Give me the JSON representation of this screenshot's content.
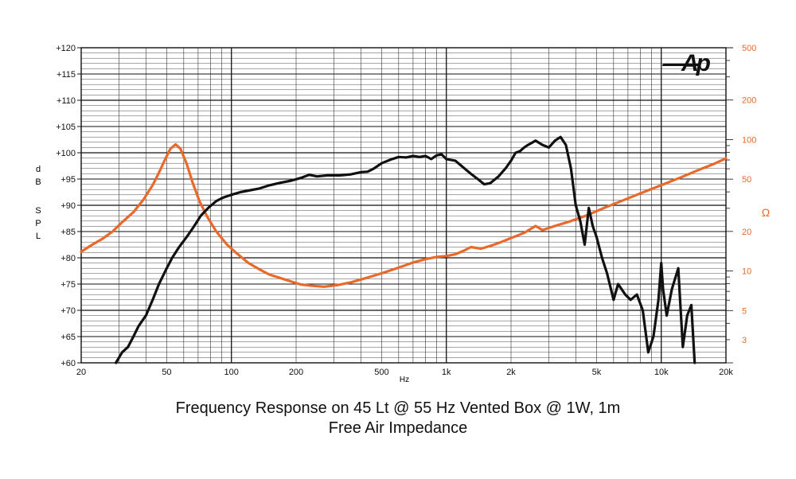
{
  "logo_text": "Ap",
  "captions": {
    "line1": "Frequency Response on 45 Lt @ 55 Hz Vented Box @ 1W, 1m",
    "line2": "Free Air Impedance"
  },
  "chart_data": {
    "type": "line",
    "title": "Frequency Response on 45 Lt @ 55 Hz Vented Box @ 1W, 1m",
    "subtitle": "Free Air Impedance",
    "xlabel": "Hz",
    "ylabel": "d B S P L",
    "y2label": "Ω",
    "xscale": "log",
    "xlim": [
      20,
      20000
    ],
    "ylim": [
      60,
      120
    ],
    "y2scale": "log",
    "y2lim": [
      2,
      500
    ],
    "grid": true,
    "x_ticks": [
      {
        "v": 20,
        "label": "20"
      },
      {
        "v": 50,
        "label": "50"
      },
      {
        "v": 100,
        "label": "100"
      },
      {
        "v": 200,
        "label": "200"
      },
      {
        "v": 500,
        "label": "500"
      },
      {
        "v": 1000,
        "label": "1k"
      },
      {
        "v": 2000,
        "label": "2k"
      },
      {
        "v": 5000,
        "label": "5k"
      },
      {
        "v": 10000,
        "label": "10k"
      },
      {
        "v": 20000,
        "label": "20k"
      }
    ],
    "y_ticks": [
      {
        "v": 120,
        "label": "+120"
      },
      {
        "v": 115,
        "label": "+115"
      },
      {
        "v": 110,
        "label": "+110"
      },
      {
        "v": 105,
        "label": "+105"
      },
      {
        "v": 100,
        "label": "+100"
      },
      {
        "v": 95,
        "label": "+95"
      },
      {
        "v": 90,
        "label": "+90"
      },
      {
        "v": 85,
        "label": "+85"
      },
      {
        "v": 80,
        "label": "+80"
      },
      {
        "v": 75,
        "label": "+75"
      },
      {
        "v": 70,
        "label": "+70"
      },
      {
        "v": 65,
        "label": "+65"
      },
      {
        "v": 60,
        "label": "+60"
      }
    ],
    "y2_ticks": [
      {
        "v": 500,
        "label": "500"
      },
      {
        "v": 200,
        "label": "200"
      },
      {
        "v": 100,
        "label": "100"
      },
      {
        "v": 50,
        "label": "50"
      },
      {
        "v": 20,
        "label": "20"
      },
      {
        "v": 10,
        "label": "10"
      },
      {
        "v": 5,
        "label": "5"
      },
      {
        "v": 3,
        "label": "3"
      }
    ],
    "colors": {
      "spl": "#111111",
      "impedance": "#e8692a",
      "grid": "#222222",
      "axis2": "#e8692a"
    },
    "series": [
      {
        "key": "spl",
        "axis": "left",
        "points": [
          [
            29,
            60
          ],
          [
            30,
            61
          ],
          [
            31,
            62
          ],
          [
            33,
            63
          ],
          [
            35,
            65
          ],
          [
            37,
            67
          ],
          [
            40,
            69
          ],
          [
            43,
            72
          ],
          [
            46,
            75
          ],
          [
            50,
            78
          ],
          [
            53,
            80
          ],
          [
            57,
            82
          ],
          [
            62,
            84
          ],
          [
            67,
            86
          ],
          [
            72,
            88
          ],
          [
            78,
            89.5
          ],
          [
            85,
            90.8
          ],
          [
            92,
            91.5
          ],
          [
            100,
            92
          ],
          [
            110,
            92.5
          ],
          [
            120,
            92.8
          ],
          [
            135,
            93.2
          ],
          [
            150,
            93.8
          ],
          [
            170,
            94.3
          ],
          [
            190,
            94.7
          ],
          [
            210,
            95.2
          ],
          [
            230,
            95.8
          ],
          [
            250,
            95.5
          ],
          [
            280,
            95.7
          ],
          [
            320,
            95.7
          ],
          [
            360,
            95.9
          ],
          [
            400,
            96.3
          ],
          [
            430,
            96.4
          ],
          [
            460,
            97
          ],
          [
            500,
            98
          ],
          [
            550,
            98.7
          ],
          [
            600,
            99.2
          ],
          [
            650,
            99.1
          ],
          [
            700,
            99.4
          ],
          [
            750,
            99.2
          ],
          [
            800,
            99.4
          ],
          [
            850,
            98.8
          ],
          [
            900,
            99.5
          ],
          [
            950,
            99.7
          ],
          [
            1000,
            98.8
          ],
          [
            1100,
            98.5
          ],
          [
            1200,
            97.2
          ],
          [
            1300,
            96
          ],
          [
            1400,
            95
          ],
          [
            1500,
            94
          ],
          [
            1600,
            94.2
          ],
          [
            1750,
            95.5
          ],
          [
            1900,
            97.2
          ],
          [
            2000,
            98.5
          ],
          [
            2100,
            100
          ],
          [
            2200,
            100.3
          ],
          [
            2300,
            101
          ],
          [
            2400,
            101.5
          ],
          [
            2600,
            102.3
          ],
          [
            2800,
            101.5
          ],
          [
            3000,
            101
          ],
          [
            3200,
            102.3
          ],
          [
            3400,
            103
          ],
          [
            3600,
            101.5
          ],
          [
            3800,
            97
          ],
          [
            4000,
            90
          ],
          [
            4200,
            87
          ],
          [
            4400,
            82.5
          ],
          [
            4600,
            89.5
          ],
          [
            4800,
            86
          ],
          [
            5000,
            84
          ],
          [
            5300,
            80
          ],
          [
            5600,
            77
          ],
          [
            6000,
            72
          ],
          [
            6300,
            75
          ],
          [
            6800,
            73
          ],
          [
            7200,
            72
          ],
          [
            7700,
            73
          ],
          [
            8200,
            70
          ],
          [
            8700,
            62
          ],
          [
            9200,
            65
          ],
          [
            9700,
            72
          ],
          [
            10000,
            79
          ],
          [
            10200,
            74
          ],
          [
            10600,
            69
          ],
          [
            11200,
            74
          ],
          [
            12000,
            78
          ],
          [
            12600,
            63
          ],
          [
            13200,
            69
          ],
          [
            13800,
            71
          ],
          [
            14300,
            60
          ]
        ]
      },
      {
        "key": "impedance",
        "axis": "right",
        "points": [
          [
            20,
            14
          ],
          [
            22,
            15.5
          ],
          [
            25,
            17.5
          ],
          [
            28,
            20
          ],
          [
            31,
            23.5
          ],
          [
            35,
            28
          ],
          [
            39,
            35
          ],
          [
            43,
            45
          ],
          [
            46,
            56
          ],
          [
            49,
            70
          ],
          [
            52,
            85
          ],
          [
            55,
            92
          ],
          [
            58,
            85
          ],
          [
            62,
            65
          ],
          [
            66,
            47
          ],
          [
            71,
            34
          ],
          [
            77,
            26
          ],
          [
            85,
            20
          ],
          [
            95,
            16
          ],
          [
            105,
            13.8
          ],
          [
            120,
            11.5
          ],
          [
            135,
            10.3
          ],
          [
            150,
            9.4
          ],
          [
            170,
            8.8
          ],
          [
            190,
            8.3
          ],
          [
            210,
            7.9
          ],
          [
            240,
            7.7
          ],
          [
            270,
            7.6
          ],
          [
            310,
            7.8
          ],
          [
            360,
            8.2
          ],
          [
            420,
            8.8
          ],
          [
            500,
            9.6
          ],
          [
            600,
            10.6
          ],
          [
            700,
            11.6
          ],
          [
            800,
            12.3
          ],
          [
            900,
            12.8
          ],
          [
            1000,
            13
          ],
          [
            1100,
            13.4
          ],
          [
            1200,
            14.2
          ],
          [
            1300,
            15.2
          ],
          [
            1450,
            14.8
          ],
          [
            1600,
            15.5
          ],
          [
            1800,
            16.6
          ],
          [
            2000,
            17.8
          ],
          [
            2300,
            19.5
          ],
          [
            2600,
            22
          ],
          [
            2800,
            20.5
          ],
          [
            3200,
            22
          ],
          [
            3800,
            24
          ],
          [
            4500,
            26.5
          ],
          [
            5500,
            30.5
          ],
          [
            6500,
            34
          ],
          [
            8000,
            39
          ],
          [
            10000,
            45
          ],
          [
            12500,
            52
          ],
          [
            15000,
            59
          ],
          [
            17500,
            65
          ],
          [
            20000,
            72
          ]
        ]
      }
    ]
  }
}
